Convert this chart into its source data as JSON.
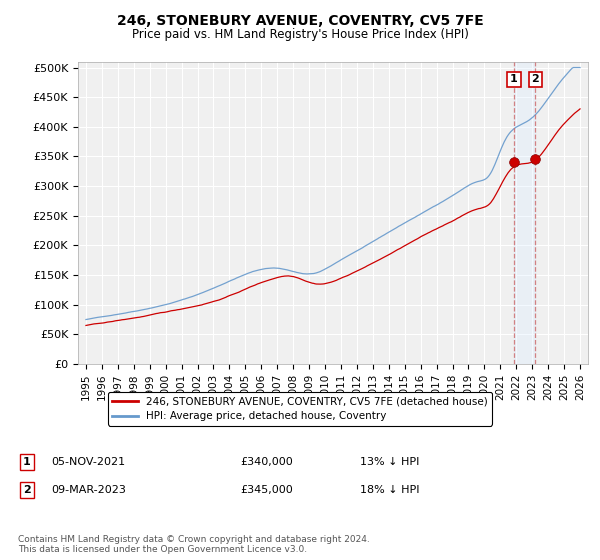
{
  "title": "246, STONEBURY AVENUE, COVENTRY, CV5 7FE",
  "subtitle": "Price paid vs. HM Land Registry's House Price Index (HPI)",
  "ylabel_ticks": [
    "£0",
    "£50K",
    "£100K",
    "£150K",
    "£200K",
    "£250K",
    "£300K",
    "£350K",
    "£400K",
    "£450K",
    "£500K"
  ],
  "ytick_vals": [
    0,
    50000,
    100000,
    150000,
    200000,
    250000,
    300000,
    350000,
    400000,
    450000,
    500000
  ],
  "ylim": [
    0,
    510000
  ],
  "xlim_start": 1994.5,
  "xlim_end": 2026.5,
  "hpi_color": "#6699cc",
  "price_color": "#cc0000",
  "vline_color": "#cc6666",
  "shade_color": "#ddeeff",
  "background_color": "#f0f0f0",
  "grid_color": "#ffffff",
  "sale1_x": 2021.85,
  "sale1_price": 340000,
  "sale2_x": 2023.2,
  "sale2_price": 345000,
  "legend_label1": "246, STONEBURY AVENUE, COVENTRY, CV5 7FE (detached house)",
  "legend_label2": "HPI: Average price, detached house, Coventry",
  "footnote": "Contains HM Land Registry data © Crown copyright and database right 2024.\nThis data is licensed under the Open Government Licence v3.0.",
  "table_row1": [
    "1",
    "05-NOV-2021",
    "£340,000",
    "13% ↓ HPI"
  ],
  "table_row2": [
    "2",
    "09-MAR-2023",
    "£345,000",
    "18% ↓ HPI"
  ]
}
